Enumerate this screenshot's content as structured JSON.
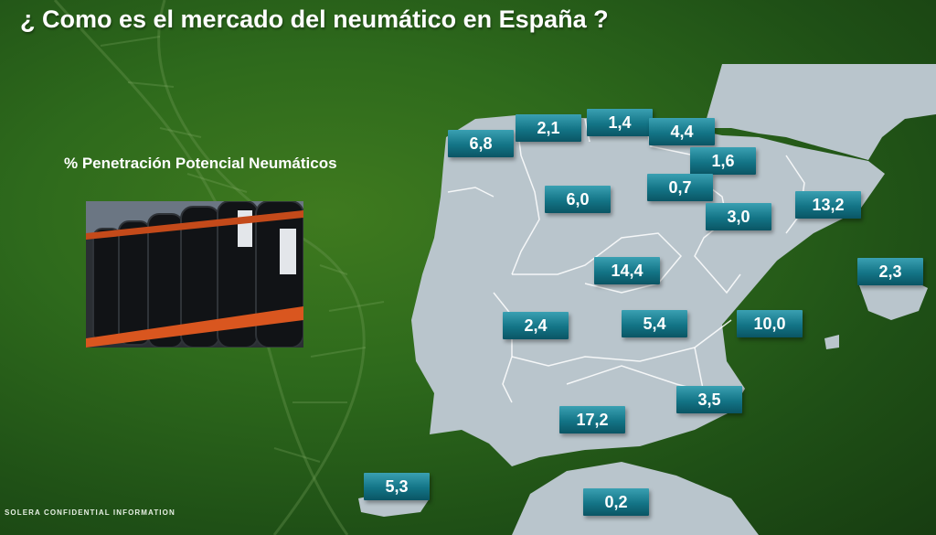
{
  "slide": {
    "title": "¿ Como es el mercado del neumático en España ?",
    "subtitle": "% Penetración Potencial Neumáticos",
    "footer": "SOLERA CONFIDENTIAL INFORMATION"
  },
  "photo": {
    "icon": "tire-rack-photo"
  },
  "map": {
    "regions": [
      {
        "id": "galicia",
        "value": "6,8"
      },
      {
        "id": "asturias",
        "value": "2,1"
      },
      {
        "id": "cantabria",
        "value": "1,4"
      },
      {
        "id": "pais-vasco",
        "value": "4,4"
      },
      {
        "id": "navarra",
        "value": "1,6"
      },
      {
        "id": "la-rioja",
        "value": "0,7"
      },
      {
        "id": "castilla-leon",
        "value": "6,0"
      },
      {
        "id": "aragon",
        "value": "3,0"
      },
      {
        "id": "cataluna",
        "value": "13,2"
      },
      {
        "id": "baleares",
        "value": "2,3"
      },
      {
        "id": "madrid",
        "value": "14,4"
      },
      {
        "id": "extremadura",
        "value": "2,4"
      },
      {
        "id": "castilla-la-mancha",
        "value": "5,4"
      },
      {
        "id": "valencia",
        "value": "10,0"
      },
      {
        "id": "murcia",
        "value": "3,5"
      },
      {
        "id": "andalucia",
        "value": "17,2"
      },
      {
        "id": "canarias",
        "value": "5,3"
      },
      {
        "id": "ceuta-melilla",
        "value": "0,2"
      }
    ]
  },
  "colors": {
    "background": "#2e6a1c",
    "map_land": "#b9c5cc",
    "badge": "#137486",
    "text": "#ffffff"
  }
}
